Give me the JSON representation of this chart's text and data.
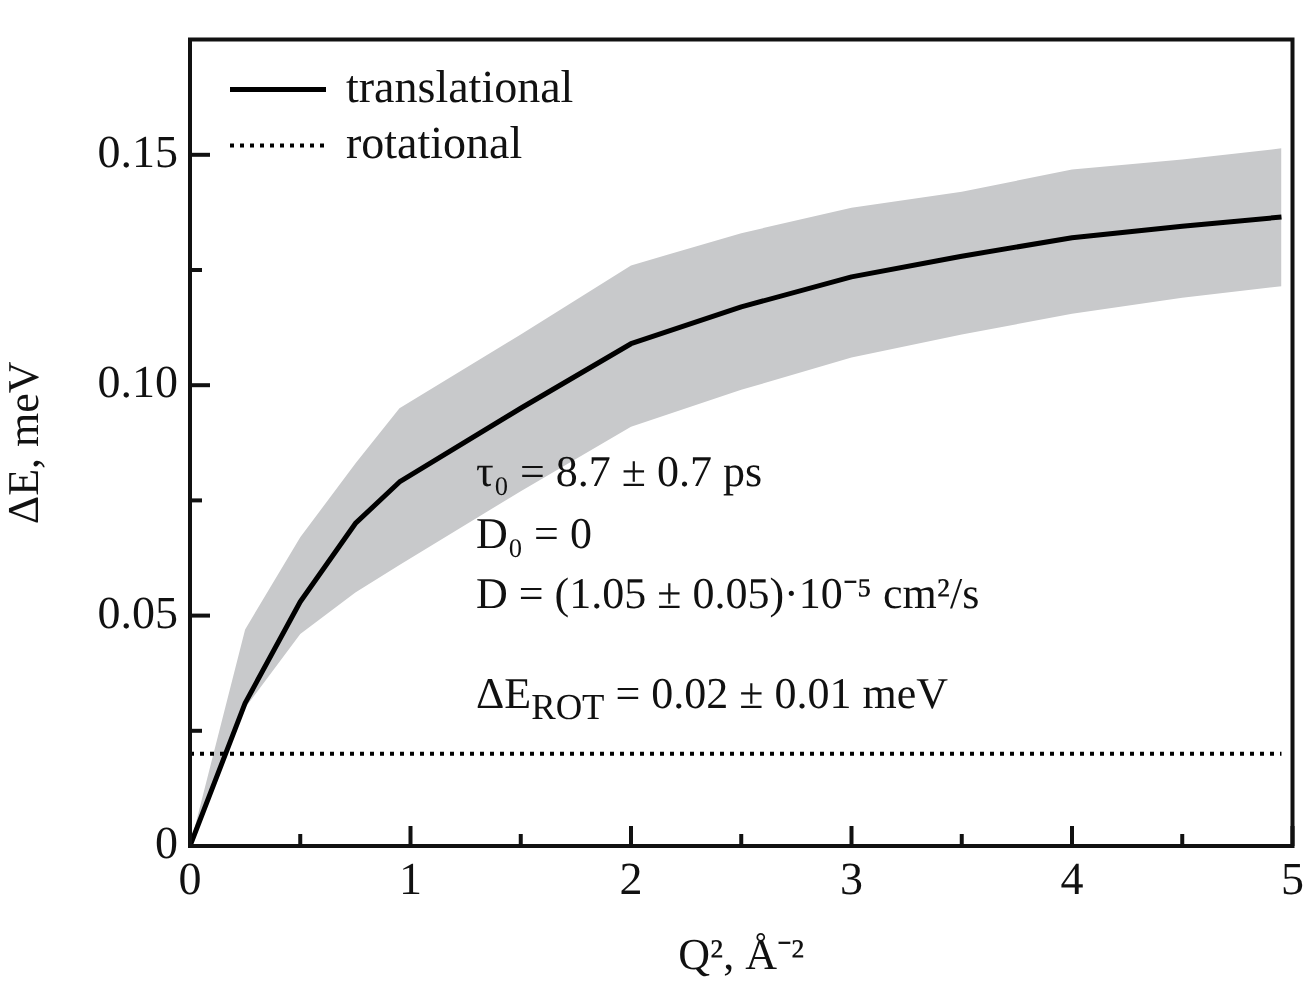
{
  "chart_data": {
    "type": "line",
    "xlabel": "Q², Å⁻²",
    "ylabel": "ΔE, meV",
    "xlim": [
      0,
      5
    ],
    "xticks": [
      0,
      {
        "value": 0.5,
        "label": null
      },
      1,
      {
        "value": 1.5,
        "label": null
      },
      2,
      {
        "value": 2.5,
        "label": null
      },
      3,
      {
        "value": 3.5,
        "label": null
      },
      4,
      {
        "value": 4.5,
        "label": null
      },
      5
    ],
    "ylim": [
      0,
      0.175
    ],
    "yticks": [
      0,
      {
        "value": 0.025,
        "label": null
      },
      {
        "value": 0.05,
        "label": "0.05"
      },
      {
        "value": 0.075,
        "label": null
      },
      {
        "value": 0.1,
        "label": "0.10"
      },
      {
        "value": 0.125,
        "label": null
      },
      {
        "value": 0.15,
        "label": "0.15"
      }
    ],
    "series": [
      {
        "name": "translational",
        "color": "#000000",
        "line_style": "solid",
        "x": [
          0,
          0.25,
          0.5,
          0.75,
          0.95,
          1.5,
          2,
          2.5,
          3,
          3.5,
          4,
          4.5,
          4.95
        ],
        "values": [
          0,
          0.031,
          0.053,
          0.07,
          0.079,
          0.095,
          0.109,
          0.117,
          0.1235,
          0.128,
          0.132,
          0.1345,
          0.1365
        ],
        "lower": [
          0,
          0.03,
          0.046,
          0.055,
          0.061,
          0.077,
          0.091,
          0.099,
          0.106,
          0.111,
          0.1155,
          0.119,
          0.1215
        ],
        "upper": [
          0,
          0.047,
          0.067,
          0.083,
          0.095,
          0.111,
          0.126,
          0.133,
          0.1385,
          0.142,
          0.1468,
          0.149,
          0.1514
        ]
      },
      {
        "name": "rotational",
        "color": "#000000",
        "line_style": "dotted",
        "x": [
          0,
          4.95
        ],
        "values": [
          0.02,
          0.02
        ]
      }
    ],
    "annotations": [
      "τ₀ = 8.7 ± 0.7 ps",
      "D₀ = 0",
      "D = (1.05 ± 0.05)·10⁻⁵ cm²/s",
      "ΔE$_{ROT}$ = 0.02 ± 0.01 meV"
    ],
    "marker": "none",
    "legend": "top left",
    "grid": false
  }
}
